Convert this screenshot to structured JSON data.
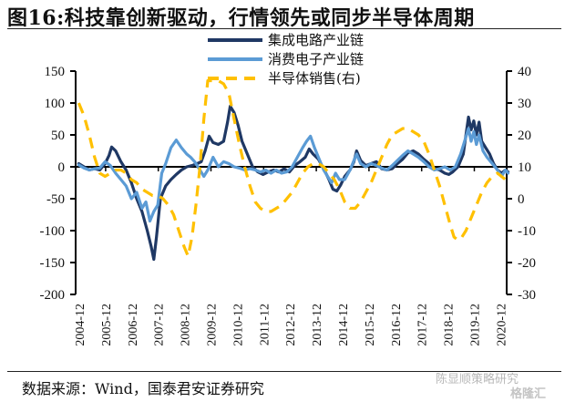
{
  "title": "图16:科技靠创新驱动，行情领先或同步半导体周期",
  "source": "数据来源：Wind，国泰君安证券研究",
  "watermark": {
    "line1": "陈显顺策略研究",
    "line2": "格隆汇"
  },
  "chart_data": {
    "type": "line",
    "title": "图16:科技靠创新驱动，行情领先或同步半导体周期",
    "xlabel": "",
    "ylabel": "",
    "x_tick_labels": [
      "2004-12",
      "2005-12",
      "2006-12",
      "2007-12",
      "2008-12",
      "2009-12",
      "2010-12",
      "2011-12",
      "2012-12",
      "2013-12",
      "2014-12",
      "2015-12",
      "2016-12",
      "2017-12",
      "2018-12",
      "2019-12",
      "2020-12"
    ],
    "x_range": [
      2004.9,
      2021.25
    ],
    "y_left": {
      "ylim": [
        -200,
        150
      ],
      "ticks": [
        "150",
        "100",
        "50",
        "0",
        "-50",
        "-100",
        "-150",
        "-200"
      ],
      "tick_values": [
        150,
        100,
        50,
        0,
        -50,
        -100,
        -150,
        -200
      ]
    },
    "y_right": {
      "ylim": [
        -30,
        40
      ],
      "ticks": [
        "40",
        "30",
        "20",
        "10",
        "0",
        "-10",
        "-20",
        "-30"
      ],
      "tick_values": [
        40,
        30,
        20,
        10,
        0,
        -10,
        -20,
        -30
      ]
    },
    "grid": false,
    "legend_position": "top-center",
    "series": [
      {
        "name": "集成电路产业链",
        "axis": "left",
        "color": "#1f3864",
        "style": "solid",
        "x": [
          2004.9,
          2005.1,
          2005.3,
          2005.5,
          2005.7,
          2005.9,
          2006.05,
          2006.15,
          2006.3,
          2006.5,
          2006.7,
          2006.9,
          2007.1,
          2007.3,
          2007.5,
          2007.65,
          2007.75,
          2007.85,
          2008.0,
          2008.2,
          2008.4,
          2008.6,
          2008.8,
          2009.0,
          2009.2,
          2009.4,
          2009.55,
          2009.7,
          2009.85,
          2010.0,
          2010.2,
          2010.4,
          2010.55,
          2010.65,
          2010.8,
          2010.95,
          2011.1,
          2011.3,
          2011.5,
          2011.7,
          2011.9,
          2012.1,
          2012.3,
          2012.5,
          2012.7,
          2012.9,
          2013.1,
          2013.3,
          2013.5,
          2013.65,
          2013.8,
          2014.0,
          2014.2,
          2014.4,
          2014.55,
          2014.7,
          2014.85,
          2015.0,
          2015.2,
          2015.35,
          2015.45,
          2015.6,
          2015.8,
          2016.0,
          2016.2,
          2016.4,
          2016.6,
          2016.8,
          2017.0,
          2017.2,
          2017.4,
          2017.6,
          2017.8,
          2018.0,
          2018.2,
          2018.4,
          2018.6,
          2018.8,
          2018.95,
          2019.1,
          2019.3,
          2019.5,
          2019.62,
          2019.7,
          2019.8,
          2019.9,
          2020.0,
          2020.1,
          2020.2,
          2020.35,
          2020.5,
          2020.65,
          2020.8,
          2020.95,
          2021.1,
          2021.2
        ],
        "values": [
          5,
          0,
          -5,
          -3,
          -5,
          5,
          18,
          31,
          25,
          8,
          -5,
          -25,
          -50,
          -70,
          -100,
          -125,
          -145,
          -110,
          -50,
          -30,
          -20,
          -12,
          -5,
          0,
          2,
          5,
          8,
          25,
          48,
          38,
          35,
          40,
          70,
          95,
          85,
          65,
          40,
          20,
          0,
          -8,
          -12,
          -8,
          -5,
          -8,
          -3,
          -8,
          2,
          8,
          15,
          28,
          20,
          12,
          -3,
          -20,
          -35,
          -38,
          -28,
          -15,
          -5,
          8,
          25,
          10,
          2,
          5,
          8,
          -3,
          -5,
          -3,
          5,
          12,
          22,
          25,
          20,
          12,
          5,
          -3,
          -5,
          -10,
          -12,
          -8,
          0,
          20,
          55,
          78,
          58,
          72,
          50,
          70,
          40,
          30,
          20,
          5,
          -5,
          -10,
          -5,
          -8
        ]
      },
      {
        "name": "消费电子产业链",
        "axis": "left",
        "color": "#5b9bd5",
        "style": "solid",
        "x": [
          2004.9,
          2005.1,
          2005.3,
          2005.5,
          2005.7,
          2005.9,
          2006.1,
          2006.3,
          2006.5,
          2006.7,
          2006.9,
          2007.1,
          2007.3,
          2007.45,
          2007.6,
          2007.75,
          2007.9,
          2008.05,
          2008.2,
          2008.4,
          2008.6,
          2008.8,
          2009.0,
          2009.15,
          2009.3,
          2009.5,
          2009.65,
          2009.8,
          2010.0,
          2010.2,
          2010.4,
          2010.6,
          2010.8,
          2011.0,
          2011.2,
          2011.4,
          2011.6,
          2011.8,
          2012.0,
          2012.2,
          2012.4,
          2012.6,
          2012.8,
          2013.0,
          2013.2,
          2013.4,
          2013.55,
          2013.7,
          2013.85,
          2014.0,
          2014.2,
          2014.35,
          2014.5,
          2014.65,
          2014.8,
          2015.0,
          2015.2,
          2015.35,
          2015.45,
          2015.6,
          2015.8,
          2016.0,
          2016.2,
          2016.4,
          2016.6,
          2016.8,
          2017.0,
          2017.2,
          2017.4,
          2017.6,
          2017.8,
          2018.0,
          2018.2,
          2018.4,
          2018.6,
          2018.8,
          2019.0,
          2019.2,
          2019.4,
          2019.55,
          2019.7,
          2019.8,
          2019.9,
          2020.0,
          2020.1,
          2020.25,
          2020.4,
          2020.6,
          2020.8,
          2020.95,
          2021.1,
          2021.2
        ],
        "values": [
          3,
          -2,
          -5,
          -3,
          -2,
          8,
          2,
          -10,
          -20,
          -30,
          -50,
          -40,
          -65,
          -55,
          -85,
          -70,
          -60,
          -10,
          5,
          30,
          42,
          30,
          20,
          15,
          8,
          -5,
          -15,
          -5,
          15,
          0,
          8,
          5,
          0,
          -2,
          -5,
          -3,
          -5,
          -8,
          -5,
          -10,
          -5,
          -10,
          -8,
          0,
          15,
          30,
          40,
          48,
          30,
          15,
          -5,
          -15,
          -25,
          -10,
          -20,
          -20,
          -5,
          10,
          20,
          5,
          0,
          5,
          2,
          -2,
          -5,
          2,
          10,
          18,
          25,
          20,
          15,
          8,
          0,
          -5,
          -3,
          0,
          -5,
          0,
          20,
          40,
          60,
          40,
          55,
          35,
          50,
          25,
          15,
          5,
          -5,
          -15,
          -5,
          -10
        ]
      },
      {
        "name": "半导体销售(右)",
        "axis": "right",
        "color": "#ffc000",
        "style": "dashed",
        "x": [
          2004.9,
          2005.1,
          2005.3,
          2005.5,
          2005.7,
          2005.9,
          2006.1,
          2006.3,
          2006.5,
          2006.7,
          2006.9,
          2007.1,
          2007.3,
          2007.5,
          2007.7,
          2007.9,
          2008.1,
          2008.3,
          2008.5,
          2008.7,
          2008.9,
          2009.05,
          2009.2,
          2009.35,
          2009.5,
          2009.65,
          2009.8,
          2010.0,
          2010.2,
          2010.4,
          2010.6,
          2010.8,
          2011.0,
          2011.2,
          2011.4,
          2011.6,
          2011.8,
          2012.0,
          2012.2,
          2012.4,
          2012.6,
          2012.8,
          2013.0,
          2013.2,
          2013.4,
          2013.6,
          2013.8,
          2014.0,
          2014.2,
          2014.4,
          2014.6,
          2014.8,
          2015.0,
          2015.2,
          2015.4,
          2015.6,
          2015.8,
          2016.0,
          2016.2,
          2016.4,
          2016.6,
          2016.8,
          2017.0,
          2017.2,
          2017.4,
          2017.6,
          2017.8,
          2018.0,
          2018.2,
          2018.4,
          2018.6,
          2018.8,
          2019.0,
          2019.15,
          2019.3,
          2019.45,
          2019.6,
          2019.8,
          2020.0,
          2020.2,
          2020.4,
          2020.6,
          2020.8,
          2020.95,
          2021.1
        ],
        "values": [
          30,
          26,
          20,
          13,
          8,
          7,
          8,
          9,
          9,
          8,
          6,
          5,
          3,
          2,
          1,
          1,
          0,
          -2,
          -5,
          -10,
          -15,
          -18,
          -12,
          -2,
          10,
          25,
          37,
          37,
          37,
          36,
          33,
          25,
          17,
          10,
          4,
          -1,
          -3,
          -4,
          -4,
          -3,
          -2,
          0,
          2,
          5,
          8,
          10,
          11,
          11,
          10,
          8,
          6,
          3,
          -1,
          -3,
          -3,
          -1,
          2,
          5,
          9,
          13,
          17,
          20,
          21,
          22,
          22,
          21,
          20,
          18,
          14,
          9,
          4,
          -2,
          -8,
          -12,
          -13,
          -12,
          -10,
          -6,
          -2,
          2,
          5,
          7,
          8,
          7,
          6
        ]
      }
    ]
  }
}
